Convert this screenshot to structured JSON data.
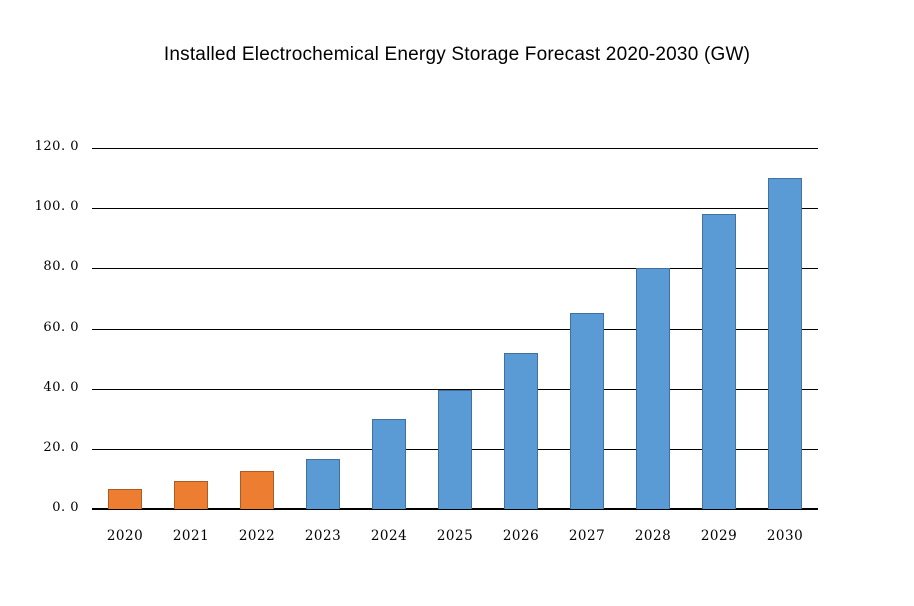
{
  "page": {
    "background": "#FFFFFF"
  },
  "chart_data": {
    "type": "bar",
    "title": "Installed Electrochemical Energy Storage Forecast 2020-2030 (GW)",
    "unit": "GW",
    "categories": [
      "2020",
      "2021",
      "2022",
      "2023",
      "2024",
      "2025",
      "2026",
      "2027",
      "2028",
      "2029",
      "2030"
    ],
    "values": [
      6.6,
      9.3,
      12.5,
      16.5,
      30.0,
      39.7,
      52.0,
      65.0,
      80.0,
      98.0,
      110.0
    ],
    "series_key": [
      "historical",
      "historical",
      "historical",
      "forecast",
      "forecast",
      "forecast",
      "forecast",
      "forecast",
      "forecast",
      "forecast",
      "forecast"
    ],
    "colors": {
      "historical_fill": "#ED7D31",
      "historical_border": "#AE5A21",
      "forecast_fill": "#5B9BD5",
      "forecast_border": "#41719C",
      "gridline": "#000000",
      "axis_line": "#000000",
      "text": "#000000",
      "background": "#FFFFFF"
    },
    "xlabel": "",
    "ylabel": "",
    "ylim": [
      0,
      120
    ],
    "y_ticks": [
      0,
      20,
      40,
      60,
      80,
      100,
      120
    ],
    "y_tick_labels": [
      "0. 0",
      "20. 0",
      "40. 0",
      "60. 0",
      "80. 0",
      "100. 0",
      "120. 0"
    ],
    "grid": "horizontal",
    "legend": "none"
  }
}
